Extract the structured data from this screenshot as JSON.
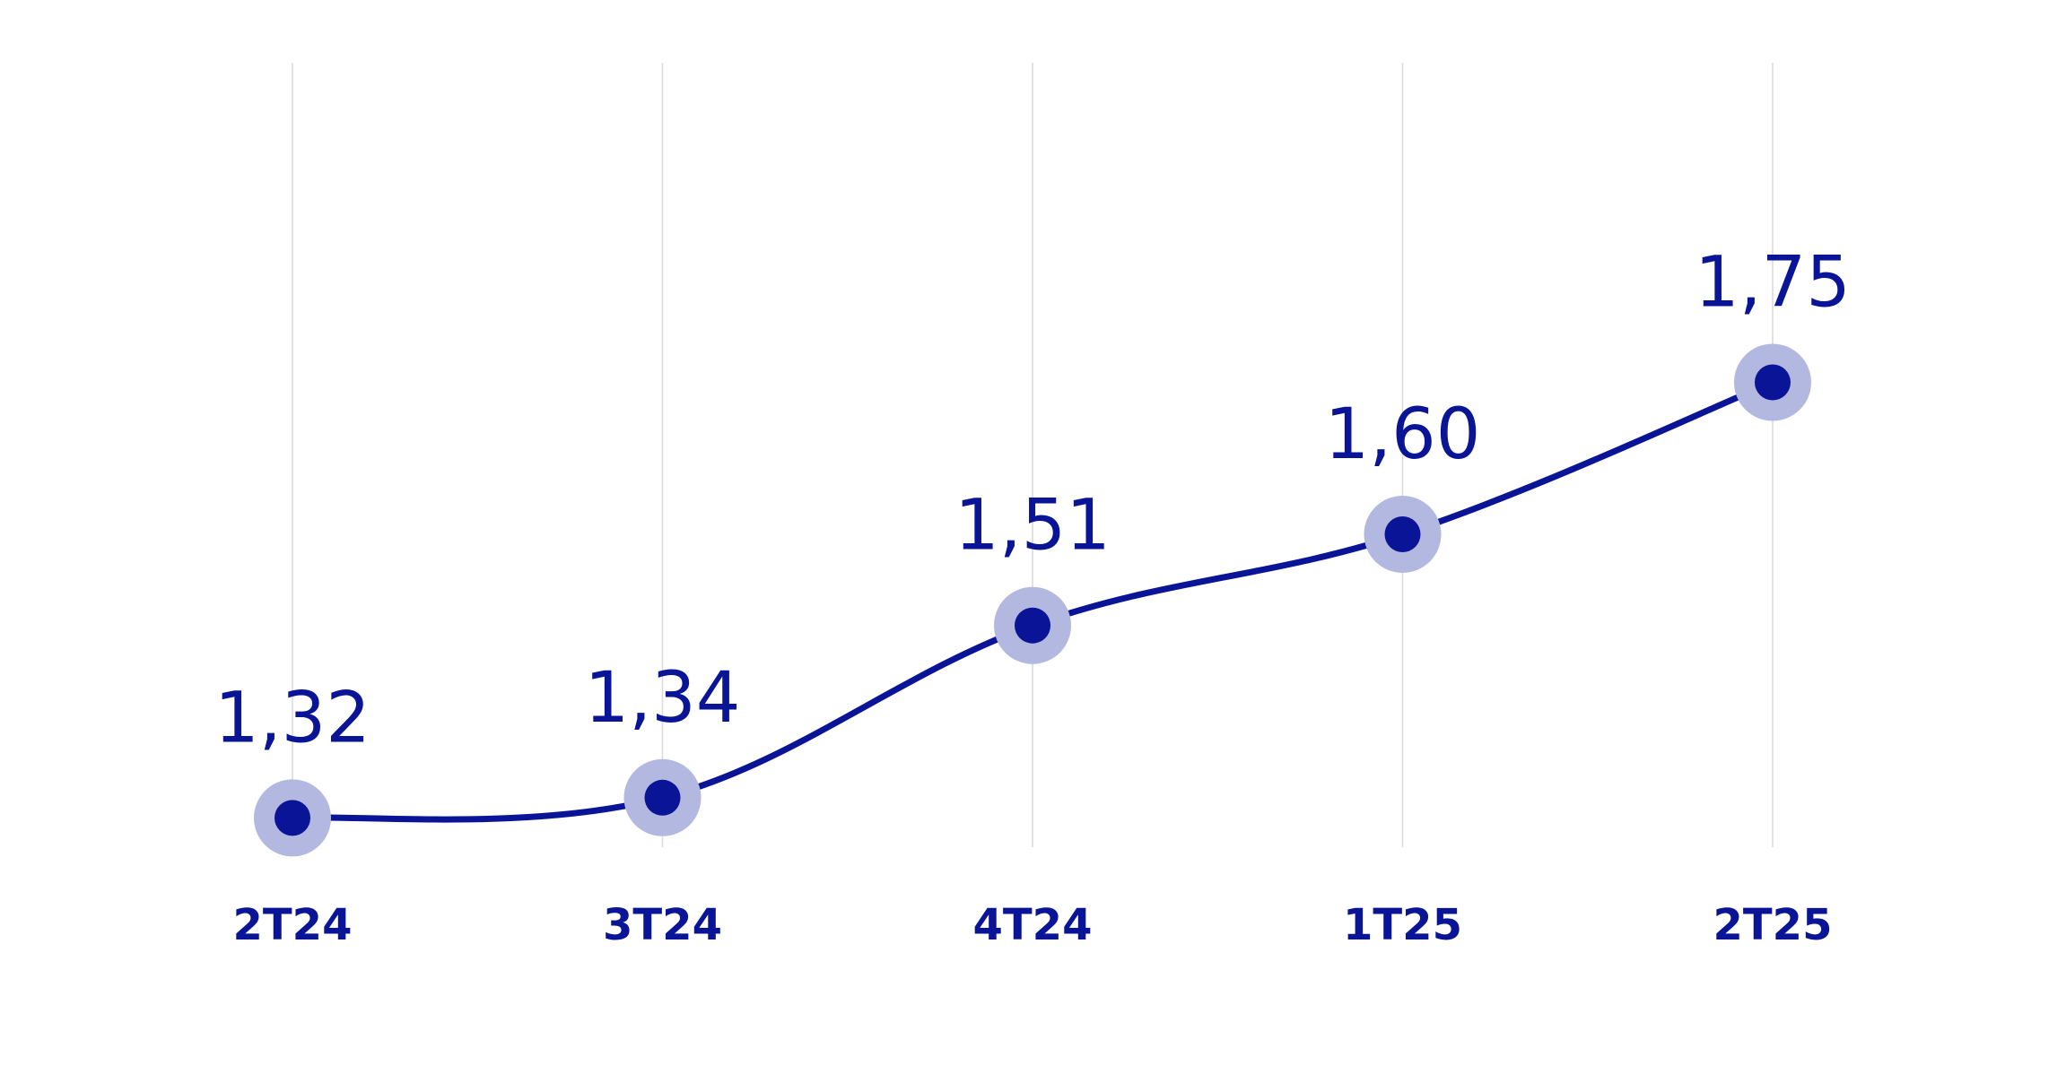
{
  "chart_data": {
    "type": "line",
    "categories": [
      "2T24",
      "3T24",
      "4T24",
      "1T25",
      "2T25"
    ],
    "series": [
      {
        "values": [
          1.32,
          1.34,
          1.51,
          1.6,
          1.75
        ],
        "labels": [
          "1,32",
          "1,34",
          "1,51",
          "1,60",
          "1,75"
        ]
      }
    ],
    "title": "",
    "xlabel": "",
    "ylabel": "",
    "ylim": [
      1.0,
      2.0
    ],
    "grid": "vertical",
    "legend": "none",
    "colors": {
      "line": "#0a1496",
      "marker": "#0a1496",
      "marker_halo": "#b3b8e0",
      "labels": "#0a1496",
      "grid": "#d9d9de"
    }
  }
}
